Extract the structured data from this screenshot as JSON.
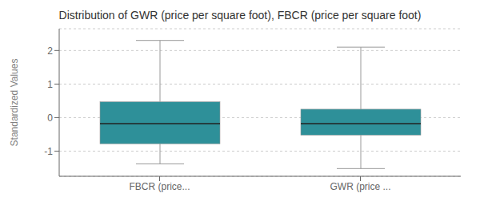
{
  "chart_data": {
    "type": "box",
    "title": "Distribution of GWR (price per square foot), FBCR (price per square foot)",
    "ylabel": "Standardized Values",
    "categories": [
      "FBCR (price...",
      "GWR (price ..."
    ],
    "boxes": [
      {
        "q1": -0.78,
        "median": -0.18,
        "q3": 0.47,
        "whisker_low": -1.38,
        "whisker_high": 2.3
      },
      {
        "q1": -0.52,
        "median": -0.18,
        "q3": 0.25,
        "whisker_low": -1.52,
        "whisker_high": 2.1
      }
    ],
    "color": "#2e9099",
    "ylim": [
      -1.75,
      2.65
    ],
    "yticks": [
      -1,
      0,
      1,
      2
    ],
    "grid": true
  }
}
